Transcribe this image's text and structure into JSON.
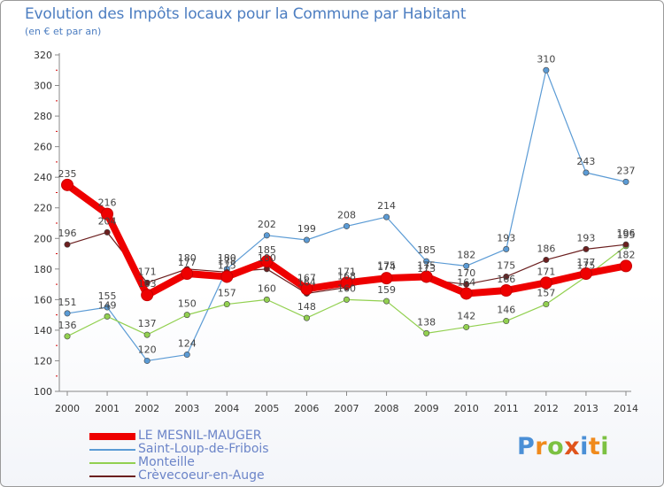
{
  "header": {
    "title": "Evolution des Impôts locaux pour la Commune par Habitant",
    "subtitle": "(en € et par an)"
  },
  "brand": {
    "letters": [
      "P",
      "r",
      "o",
      "x",
      "i",
      "t",
      "i"
    ],
    "colors": [
      "#4a8fd6",
      "#f08a1c",
      "#7cc142",
      "#e0531b",
      "#4a8fd6",
      "#f08a1c",
      "#7cc142"
    ]
  },
  "chart_data": {
    "type": "line",
    "title": "Evolution des Impôts locaux pour la Commune par Habitant",
    "subtitle": "(en € et par an)",
    "xlabel": "",
    "ylabel": "",
    "categories": [
      "2000",
      "2001",
      "2002",
      "2003",
      "2004",
      "2005",
      "2006",
      "2007",
      "2008",
      "2009",
      "2010",
      "2011",
      "2012",
      "2013",
      "2014"
    ],
    "ylim": [
      100,
      320
    ],
    "yticks": [
      100,
      120,
      140,
      160,
      180,
      200,
      220,
      240,
      260,
      280,
      300,
      320
    ],
    "grid": false,
    "legend_position": "bottom-left",
    "series": [
      {
        "name": "LE MESNIL-MAUGER",
        "color": "#ee0000",
        "values": [
          235,
          216,
          163,
          177,
          175,
          185,
          167,
          171,
          174,
          175,
          164,
          166,
          171,
          177,
          182
        ]
      },
      {
        "name": "Saint-Loup-de-Fribois",
        "color": "#5b9bd5",
        "values": [
          151,
          155,
          120,
          124,
          180,
          202,
          199,
          208,
          214,
          185,
          182,
          193,
          310,
          243,
          237
        ]
      },
      {
        "name": "Monteille",
        "color": "#92d050",
        "values": [
          136,
          149,
          137,
          150,
          157,
          160,
          148,
          160,
          159,
          138,
          142,
          146,
          157,
          175,
          195
        ]
      },
      {
        "name": "Crèvecoeur-en-Auge",
        "color": "#6b1f1f",
        "values": [
          196,
          204,
          171,
          180,
          178,
          180,
          164,
          168,
          175,
          173,
          170,
          175,
          186,
          193,
          196
        ]
      }
    ]
  }
}
